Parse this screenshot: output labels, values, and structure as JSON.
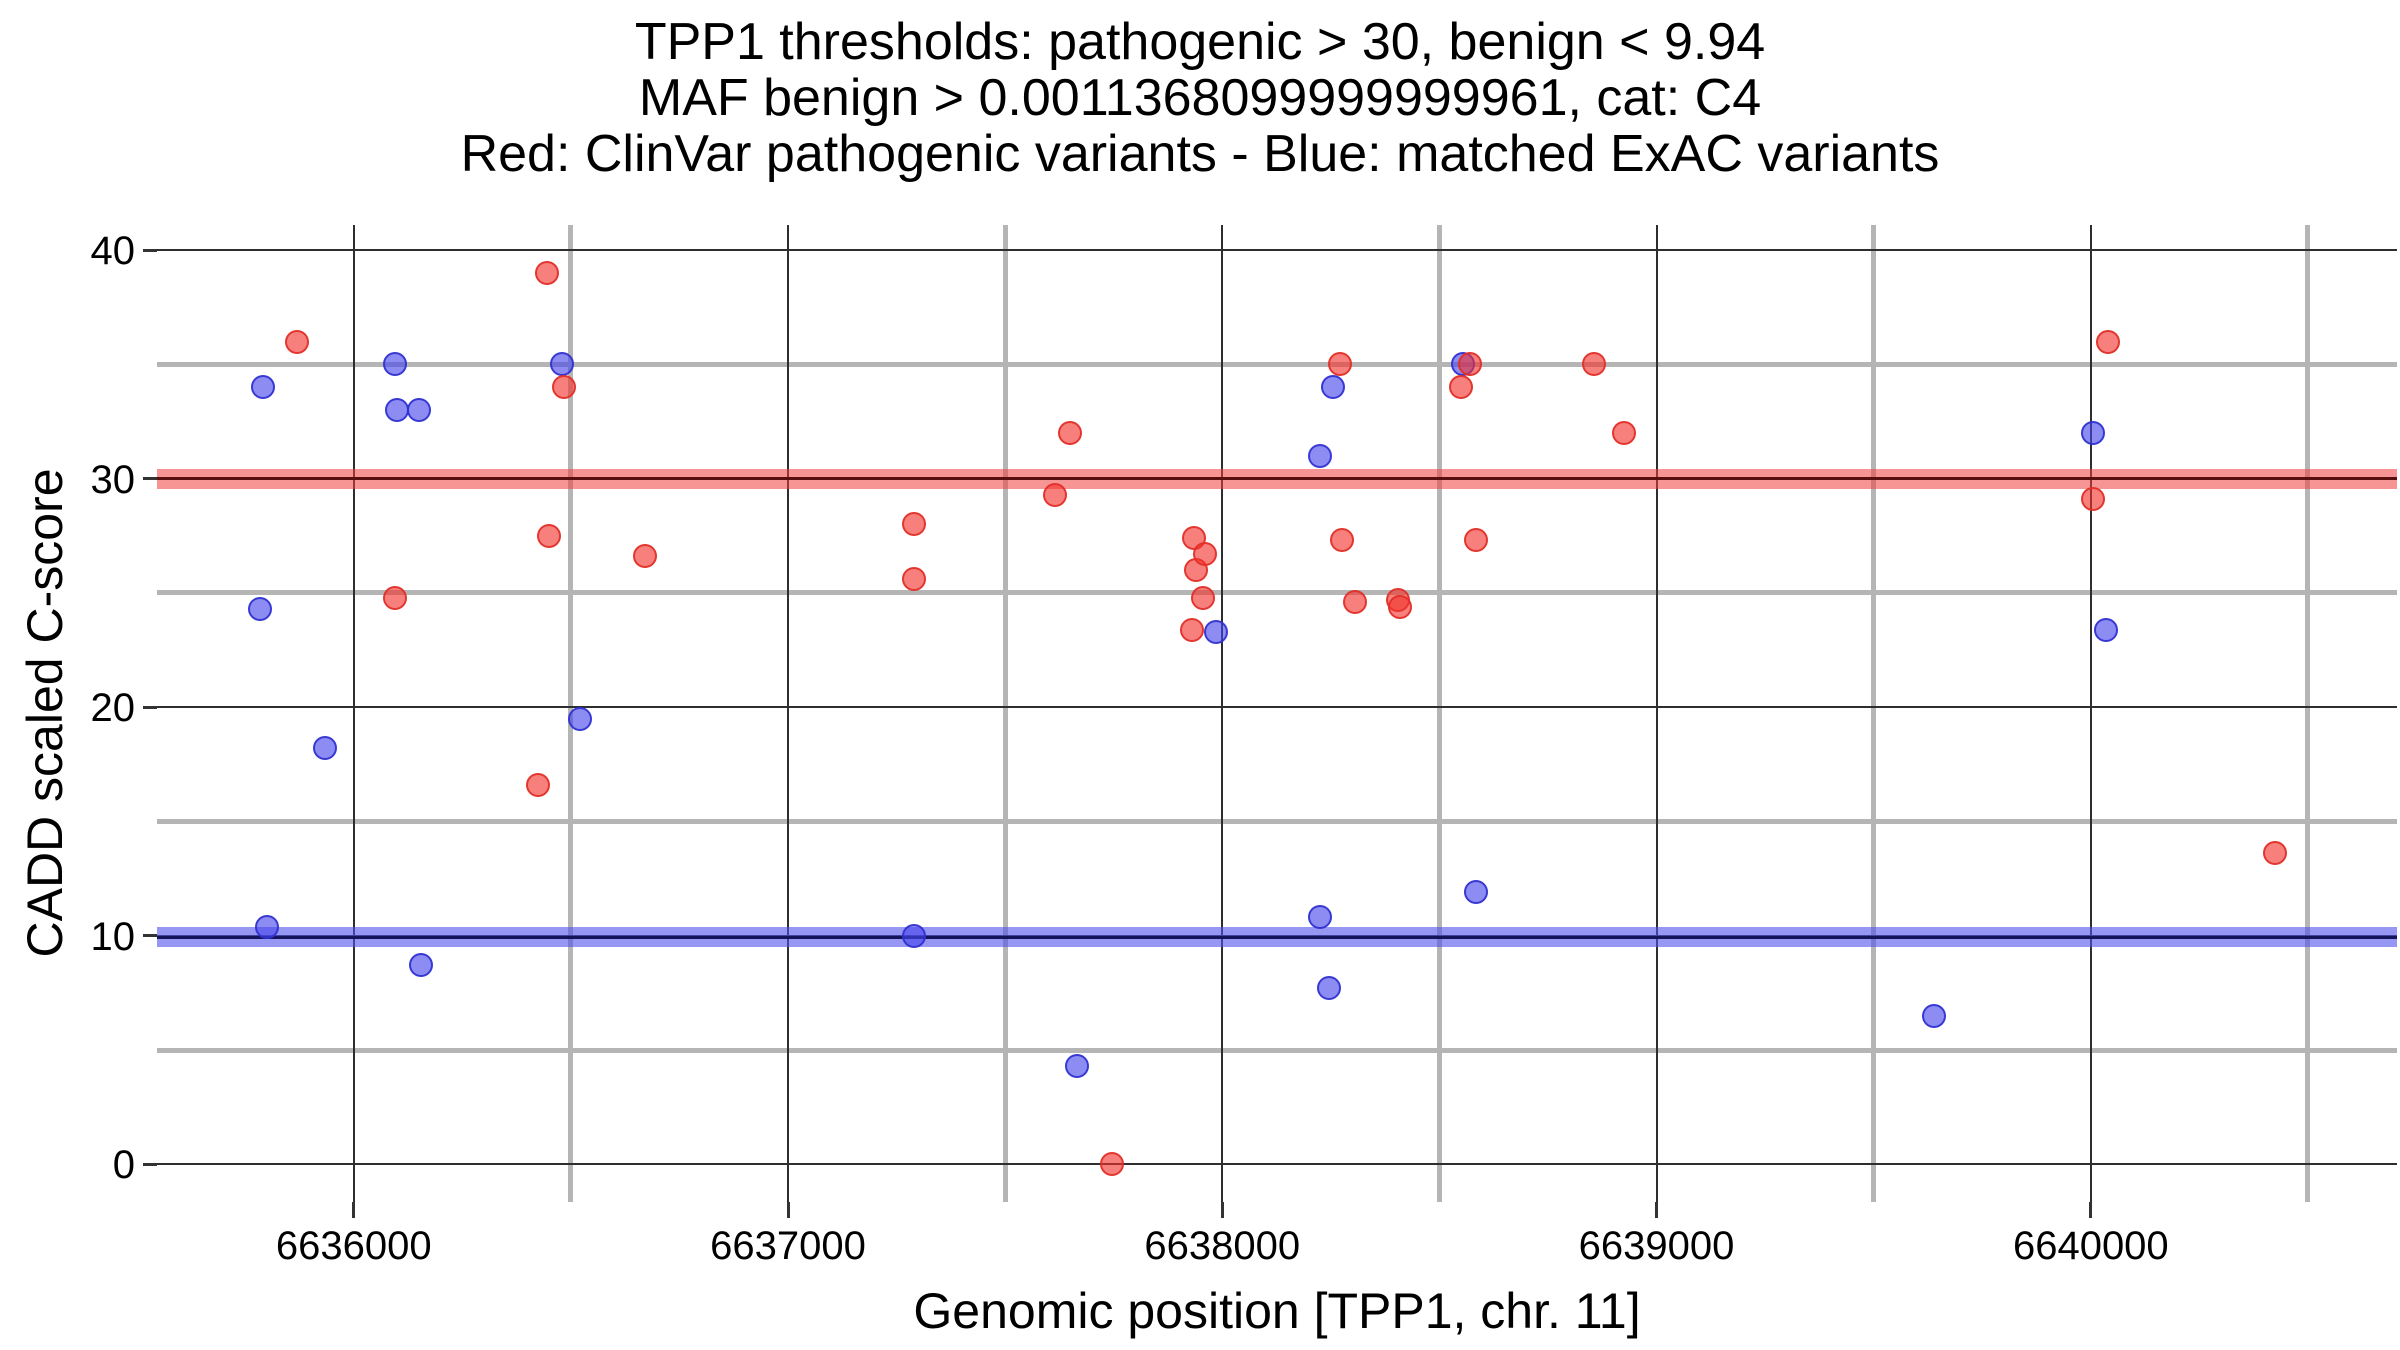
{
  "title": {
    "line1": "TPP1 thresholds: pathogenic > 30, benign < 9.94",
    "line2": "MAF benign > 0.0011368099999999961, cat: C4",
    "line3": "Red: ClinVar pathogenic variants - Blue: matched ExAC variants"
  },
  "chart_data": {
    "type": "scatter",
    "title": "TPP1 thresholds: pathogenic > 30, benign < 9.94\nMAF benign > 0.0011368099999999961, cat: C4\nRed: ClinVar pathogenic variants - Blue: matched ExAC variants",
    "xlabel": "Genomic position [TPP1, chr. 11]",
    "ylabel": "CADD scaled C-score",
    "gene": "TPP1",
    "chromosome": "chr. 11",
    "x_domain": [
      6635547,
      6640705
    ],
    "y_domain": [
      -1.65,
      41.1
    ],
    "x_major_ticks": [
      6636000,
      6637000,
      6638000,
      6639000,
      6640000
    ],
    "x_major_tick_labels": [
      "6636000",
      "6637000",
      "6638000",
      "6639000",
      "6640000"
    ],
    "x_minor_gridlines": [
      6636500,
      6637500,
      6638500,
      6639500,
      6640500
    ],
    "y_major_ticks": [
      0,
      10,
      20,
      30,
      40
    ],
    "y_major_tick_labels": [
      "0",
      "10",
      "20",
      "30",
      "40"
    ],
    "y_minor_gridlines": [
      5,
      15,
      25,
      35
    ],
    "grid": true,
    "legend_position": "none",
    "thresholds": {
      "pathogenic_cadd_threshold": 30,
      "benign_cadd_threshold": 9.94,
      "maf_benign_threshold": "0.0011368099999999961",
      "category": "C4"
    },
    "series": [
      {
        "name": "ClinVar pathogenic variants",
        "color": "red",
        "points": [
          [
            6635870,
            36
          ],
          [
            6636095,
            24.8
          ],
          [
            6636425,
            16.6
          ],
          [
            6636445,
            39
          ],
          [
            6636450,
            27.5
          ],
          [
            6636485,
            34
          ],
          [
            6636670,
            26.6
          ],
          [
            6637290,
            28
          ],
          [
            6637290,
            25.6
          ],
          [
            6637615,
            29.3
          ],
          [
            6637650,
            32
          ],
          [
            6637745,
            0
          ],
          [
            6637930,
            23.4
          ],
          [
            6637935,
            27.4
          ],
          [
            6637940,
            26.0
          ],
          [
            6637955,
            24.8
          ],
          [
            6637960,
            26.7
          ],
          [
            6638270,
            35
          ],
          [
            6638275,
            27.3
          ],
          [
            6638305,
            24.6
          ],
          [
            6638405,
            24.7
          ],
          [
            6638410,
            24.4
          ],
          [
            6638550,
            34
          ],
          [
            6638570,
            35
          ],
          [
            6638585,
            27.3
          ],
          [
            6638855,
            35
          ],
          [
            6638925,
            32
          ],
          [
            6640005,
            29.1
          ],
          [
            6640040,
            36
          ],
          [
            6640425,
            13.6
          ]
        ]
      },
      {
        "name": "matched ExAC variants",
        "color": "blue",
        "points": [
          [
            6635785,
            24.3
          ],
          [
            6635790,
            34
          ],
          [
            6635800,
            10.4
          ],
          [
            6635935,
            18.2
          ],
          [
            6636095,
            35
          ],
          [
            6636100,
            33
          ],
          [
            6636150,
            33
          ],
          [
            6636155,
            8.7
          ],
          [
            6636480,
            35
          ],
          [
            6636520,
            19.5
          ],
          [
            6637290,
            10.0
          ],
          [
            6637665,
            4.3
          ],
          [
            6637985,
            23.3
          ],
          [
            6638225,
            31
          ],
          [
            6638225,
            10.8
          ],
          [
            6638245,
            7.7
          ],
          [
            6638255,
            34
          ],
          [
            6638555,
            35
          ],
          [
            6638585,
            11.9
          ],
          [
            6639640,
            6.5
          ],
          [
            6640005,
            32
          ],
          [
            6640035,
            23.4
          ]
        ]
      }
    ]
  },
  "colors": {
    "clinvar_red_fill": "rgba(242,50,45,0.62)",
    "clinvar_red_stroke": "rgba(224,47,40,0.9)",
    "exac_blue_fill": "rgba(70,70,235,0.62)",
    "exac_blue_stroke": "rgba(48,48,208,0.9)",
    "pathogenic_band": "rgba(240,60,60,0.55)",
    "pathogenic_line": "#5a0f0f",
    "benign_band": "rgba(80,80,235,0.60)",
    "benign_line": "#14145a",
    "grid_major": "#2e2e2e",
    "grid_minor": "#b5b5b5",
    "background": "#ffffff",
    "text": "#000000"
  }
}
